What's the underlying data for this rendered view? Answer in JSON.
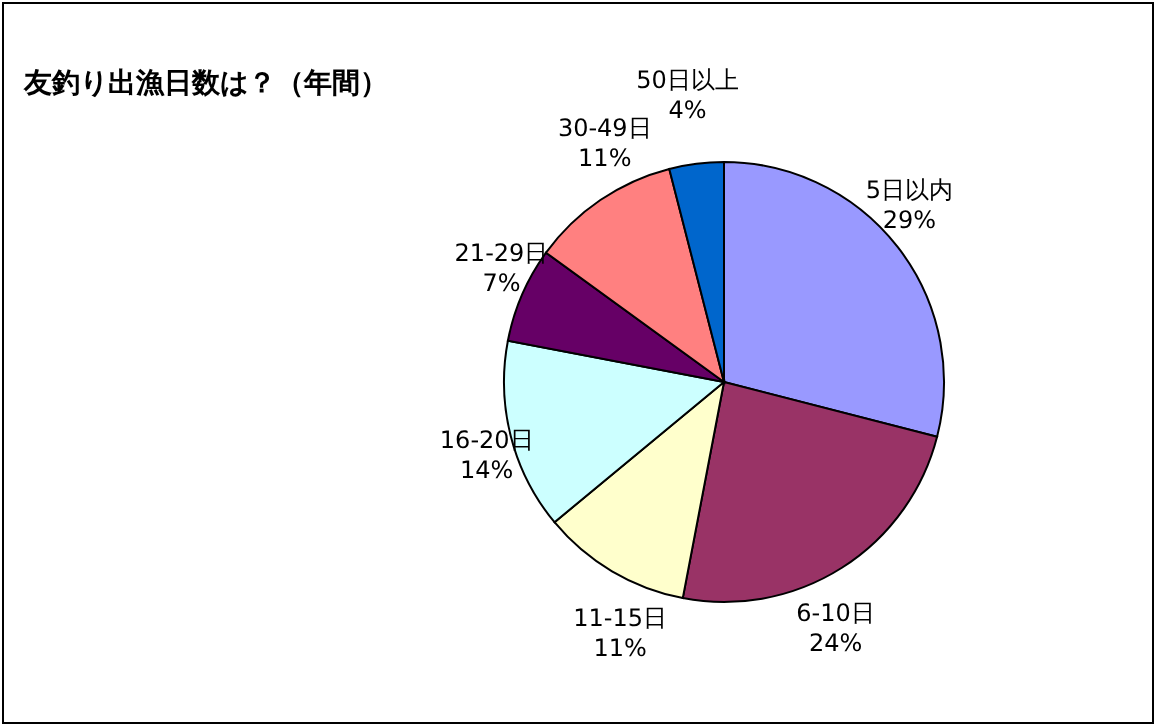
{
  "chart_data": {
    "type": "pie",
    "title": "友釣り出漁日数は？（年間）",
    "categories": [
      "5日以内",
      "6-10日",
      "11-15日",
      "16-20日",
      "21-29日",
      "30-49日",
      "50日以上"
    ],
    "values": [
      29,
      24,
      11,
      14,
      7,
      11,
      4
    ],
    "value_labels": [
      "29%",
      "24%",
      "11%",
      "14%",
      "7%",
      "11%",
      "4%"
    ],
    "colors": [
      "#9999ff",
      "#993366",
      "#ffffcc",
      "#ccffff",
      "#660066",
      "#ff8080",
      "#0066cc"
    ]
  }
}
